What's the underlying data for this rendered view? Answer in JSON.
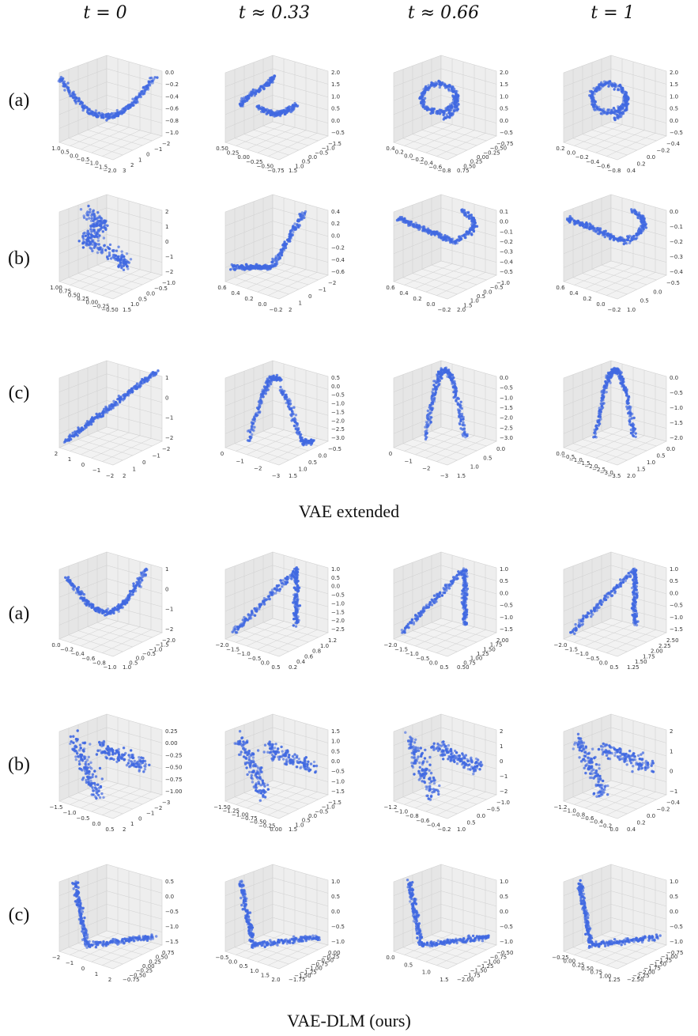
{
  "column_headers": [
    "t = 0",
    "t ≈ 0.33",
    "t ≈ 0.66",
    "t = 1"
  ],
  "row_labels": [
    "(a)",
    "(b)",
    "(c)"
  ],
  "sections": [
    {
      "title": "VAE extended"
    },
    {
      "title": "VAE-DLM (ours)"
    }
  ],
  "colors": {
    "point": "#4169e1",
    "pane_left": "#e6e6e6",
    "pane_right": "#eeeeee",
    "pane_floor": "#f2f2f2",
    "grid": "#d0d0d0"
  },
  "chart_data": [
    {
      "type": "scatter",
      "section": "VAE extended",
      "row": "(a)",
      "column": "t = 0",
      "shape": "parabola",
      "axes": {
        "x_ticks": [
          "1.0",
          "0.5",
          "0.0",
          "−0.5",
          "−1.0",
          "−1.5",
          "−2.0"
        ],
        "y_ticks": [
          "−2",
          "−1",
          "0",
          "1",
          "2",
          "3"
        ],
        "z_ticks": [
          "0.0",
          "−0.2",
          "−0.4",
          "−0.6",
          "−0.8",
          "−1.0"
        ]
      }
    },
    {
      "type": "scatter",
      "section": "VAE extended",
      "row": "(a)",
      "column": "t ≈ 0.33",
      "shape": "hook",
      "axes": {
        "x_ticks": [
          "0.50",
          "0.25",
          "0.00",
          "−0.25",
          "−0.50",
          "−0.75"
        ],
        "y_ticks": [
          "−1.5",
          "−1.0",
          "−0.5",
          "0.0",
          "0.5",
          "1.0",
          "1.5"
        ],
        "z_ticks": [
          "2.0",
          "1.5",
          "1.0",
          "0.5",
          "0.0",
          "−0.5"
        ]
      }
    },
    {
      "type": "scatter",
      "section": "VAE extended",
      "row": "(a)",
      "column": "t ≈ 0.66",
      "shape": "loop",
      "axes": {
        "x_ticks": [
          "0.4",
          "0.2",
          "0.0",
          "−0.2",
          "−0.4",
          "−0.6",
          "−0.8"
        ],
        "y_ticks": [
          "−0.75",
          "−0.50",
          "−0.25",
          "0.00",
          "0.25",
          "0.50",
          "0.75"
        ],
        "z_ticks": [
          "2.0",
          "1.5",
          "1.0",
          "0.5",
          "0.0",
          "−0.5"
        ]
      }
    },
    {
      "type": "scatter",
      "section": "VAE extended",
      "row": "(a)",
      "column": "t = 1",
      "shape": "loop",
      "axes": {
        "x_ticks": [
          "0.2",
          "0.0",
          "−0.2",
          "−0.4",
          "−0.6",
          "−0.8"
        ],
        "y_ticks": [
          "−0.4",
          "−0.2",
          "0.0",
          "0.2",
          "0.4"
        ],
        "z_ticks": [
          "2.0",
          "1.5",
          "1.0",
          "0.5",
          "0.0",
          "−0.5"
        ]
      }
    },
    {
      "type": "scatter",
      "section": "VAE extended",
      "row": "(b)",
      "column": "t = 0",
      "shape": "sheet",
      "axes": {
        "x_ticks": [
          "1.00",
          "0.75",
          "0.50",
          "0.25",
          "0.00",
          "−0.25",
          "−0.50"
        ],
        "y_ticks": [
          "−1.0",
          "−0.5",
          "0.0",
          "0.5",
          "1.0",
          "1.5"
        ],
        "z_ticks": [
          "2",
          "1",
          "0",
          "−1",
          "−2"
        ]
      }
    },
    {
      "type": "scatter",
      "section": "VAE extended",
      "row": "(b)",
      "column": "t ≈ 0.33",
      "shape": "j-curve",
      "axes": {
        "x_ticks": [
          "0.6",
          "0.4",
          "0.2",
          "0.0",
          "−0.2"
        ],
        "y_ticks": [
          "−2",
          "−1",
          "0",
          "1",
          "2"
        ],
        "z_ticks": [
          "0.4",
          "0.2",
          "0.0",
          "−0.2",
          "−0.4",
          "−0.6"
        ]
      }
    },
    {
      "type": "scatter",
      "section": "VAE extended",
      "row": "(b)",
      "column": "t ≈ 0.66",
      "shape": "line-hook",
      "axes": {
        "x_ticks": [
          "0.6",
          "0.4",
          "0.2",
          "0.0",
          "−0.2"
        ],
        "y_ticks": [
          "−1.0",
          "−0.5",
          "0.0",
          "0.5",
          "1.0",
          "1.5",
          "2.0"
        ],
        "z_ticks": [
          "0.1",
          "0.0",
          "−0.1",
          "−0.2",
          "−0.3",
          "−0.4",
          "−0.5"
        ]
      }
    },
    {
      "type": "scatter",
      "section": "VAE extended",
      "row": "(b)",
      "column": "t = 1",
      "shape": "line-hook",
      "axes": {
        "x_ticks": [
          "0.6",
          "0.4",
          "0.2",
          "0.0",
          "−0.2"
        ],
        "y_ticks": [
          "−0.5",
          "0.0",
          "0.5",
          "1.0"
        ],
        "z_ticks": [
          "0.0",
          "−0.1",
          "−0.2",
          "−0.3",
          "−0.4"
        ]
      }
    },
    {
      "type": "scatter",
      "section": "VAE extended",
      "row": "(c)",
      "column": "t = 0",
      "shape": "diagonal",
      "axes": {
        "x_ticks": [
          "2",
          "1",
          "0",
          "−1",
          "−2"
        ],
        "y_ticks": [
          "−2",
          "−1",
          "0",
          "1",
          "2"
        ],
        "z_ticks": [
          "1",
          "0",
          "−1",
          "−2"
        ]
      }
    },
    {
      "type": "scatter",
      "section": "VAE extended",
      "row": "(c)",
      "column": "t ≈ 0.33",
      "shape": "arch",
      "axes": {
        "x_ticks": [
          "0",
          "−1",
          "−2",
          "−3"
        ],
        "y_ticks": [
          "−0.5",
          "0.0",
          "0.5",
          "1.0",
          "1.5"
        ],
        "z_ticks": [
          "0.5",
          "0.0",
          "−0.5",
          "−1.0",
          "−1.5",
          "−2.0",
          "−2.5",
          "−3.0"
        ]
      }
    },
    {
      "type": "scatter",
      "section": "VAE extended",
      "row": "(c)",
      "column": "t ≈ 0.66",
      "shape": "inverted-u",
      "axes": {
        "x_ticks": [
          "0",
          "−1",
          "−2",
          "−3"
        ],
        "y_ticks": [
          "0.0",
          "0.5",
          "1.0",
          "1.5"
        ],
        "z_ticks": [
          "0.0",
          "−0.5",
          "−1.0",
          "−1.5",
          "−2.0",
          "−2.5",
          "−3.0"
        ]
      }
    },
    {
      "type": "scatter",
      "section": "VAE extended",
      "row": "(c)",
      "column": "t = 1",
      "shape": "inverted-u",
      "axes": {
        "x_ticks": [
          "0.0",
          "−0.5",
          "−1.0",
          "−1.5",
          "−2.0",
          "−2.5",
          "−3.0",
          "−3.5"
        ],
        "y_ticks": [
          "0.0",
          "0.5",
          "1.0",
          "1.5",
          "2.0"
        ],
        "z_ticks": [
          "0.0",
          "−0.5",
          "−1.0",
          "−1.5",
          "−2.0"
        ]
      }
    },
    {
      "type": "scatter",
      "section": "VAE-DLM (ours)",
      "row": "(a)",
      "column": "t = 0",
      "shape": "horseshoe",
      "axes": {
        "x_ticks": [
          "0.0",
          "−0.2",
          "−0.4",
          "−0.6",
          "−0.8",
          "−1.0"
        ],
        "y_ticks": [
          "−2.0",
          "−1.5",
          "−1.0",
          "−0.5",
          "0.0",
          "0.5",
          "1.0"
        ],
        "z_ticks": [
          "1",
          "0",
          "−1",
          "−2"
        ]
      }
    },
    {
      "type": "scatter",
      "section": "VAE-DLM (ours)",
      "row": "(a)",
      "column": "t ≈ 0.33",
      "shape": "chevron",
      "axes": {
        "x_ticks": [
          "−2.0",
          "−1.5",
          "−1.0",
          "−0.5",
          "0.0",
          "0.5"
        ],
        "y_ticks": [
          "1.2",
          "1.0",
          "0.8",
          "0.6",
          "0.4",
          "0.2"
        ],
        "z_ticks": [
          "1.0",
          "0.5",
          "0.0",
          "−0.5",
          "−1.0",
          "−1.5",
          "−2.0",
          "−2.5"
        ]
      }
    },
    {
      "type": "scatter",
      "section": "VAE-DLM (ours)",
      "row": "(a)",
      "column": "t ≈ 0.66",
      "shape": "chevron",
      "axes": {
        "x_ticks": [
          "−2.0",
          "−1.5",
          "−1.0",
          "−0.5",
          "0.0",
          "0.5"
        ],
        "y_ticks": [
          "2.00",
          "1.75",
          "1.50",
          "1.25",
          "1.00",
          "0.75",
          "0.50"
        ],
        "z_ticks": [
          "1.0",
          "0.5",
          "0.0",
          "−0.5",
          "−1.0",
          "−1.5"
        ]
      }
    },
    {
      "type": "scatter",
      "section": "VAE-DLM (ours)",
      "row": "(a)",
      "column": "t = 1",
      "shape": "chevron",
      "axes": {
        "x_ticks": [
          "−2.0",
          "−1.5",
          "−1.0",
          "−0.5",
          "0.0",
          "0.5"
        ],
        "y_ticks": [
          "2.50",
          "2.25",
          "2.00",
          "1.75",
          "1.50",
          "1.25"
        ],
        "z_ticks": [
          "1.0",
          "0.5",
          "0.0",
          "−0.5",
          "−1.0",
          "−1.5"
        ]
      }
    },
    {
      "type": "scatter",
      "section": "VAE-DLM (ours)",
      "row": "(b)",
      "column": "t = 0",
      "shape": "wing",
      "axes": {
        "x_ticks": [
          "−1.5",
          "−1.0",
          "−0.5",
          "0.0",
          "0.5"
        ],
        "y_ticks": [
          "−3",
          "−2",
          "−1",
          "0",
          "1",
          "2"
        ],
        "z_ticks": [
          "0.25",
          "0.00",
          "−0.25",
          "−0.50",
          "−0.75",
          "−1.00"
        ]
      }
    },
    {
      "type": "scatter",
      "section": "VAE-DLM (ours)",
      "row": "(b)",
      "column": "t ≈ 0.33",
      "shape": "wing",
      "axes": {
        "x_ticks": [
          "−1.50",
          "−1.25",
          "−1.00",
          "−0.75",
          "−0.50",
          "−0.25",
          "0.00"
        ],
        "y_ticks": [
          "−1.5",
          "−1.0",
          "−0.5",
          "0.0",
          "0.5",
          "1.0",
          "1.5"
        ],
        "z_ticks": [
          "1.5",
          "1.0",
          "0.5",
          "0.0",
          "−0.5",
          "−1.0",
          "−1.5"
        ]
      }
    },
    {
      "type": "scatter",
      "section": "VAE-DLM (ours)",
      "row": "(b)",
      "column": "t ≈ 0.66",
      "shape": "wing",
      "axes": {
        "x_ticks": [
          "−1.2",
          "−1.0",
          "−0.8",
          "−0.6",
          "−0.4",
          "−0.2"
        ],
        "y_ticks": [
          "−1.0",
          "−0.5",
          "0.0",
          "0.5",
          "1.0"
        ],
        "z_ticks": [
          "2",
          "1",
          "0",
          "−1",
          "−2"
        ]
      }
    },
    {
      "type": "scatter",
      "section": "VAE-DLM (ours)",
      "row": "(b)",
      "column": "t = 1",
      "shape": "wing",
      "axes": {
        "x_ticks": [
          "−1.2",
          "−1.0",
          "−0.8",
          "−0.6",
          "−0.4",
          "−0.2",
          "0.0"
        ],
        "y_ticks": [
          "−0.4",
          "−0.2",
          "0.0",
          "0.2",
          "0.4"
        ],
        "z_ticks": [
          "2",
          "1",
          "0",
          "−1"
        ]
      }
    },
    {
      "type": "scatter",
      "section": "VAE-DLM (ours)",
      "row": "(c)",
      "column": "t = 0",
      "shape": "l-curve",
      "axes": {
        "x_ticks": [
          "−2",
          "−1",
          "0",
          "1",
          "2"
        ],
        "y_ticks": [
          "0.75",
          "0.50",
          "0.25",
          "0.00",
          "−0.25",
          "−0.50",
          "−0.75"
        ],
        "z_ticks": [
          "0.5",
          "0.0",
          "−0.5",
          "−1.0",
          "−1.5"
        ]
      }
    },
    {
      "type": "scatter",
      "section": "VAE-DLM (ours)",
      "row": "(c)",
      "column": "t ≈ 0.33",
      "shape": "l-curve",
      "axes": {
        "x_ticks": [
          "−0.5",
          "0.0",
          "0.5",
          "1.0",
          "1.5",
          "2.0"
        ],
        "y_ticks": [
          "0.00",
          "−0.25",
          "−0.50",
          "−0.75",
          "−1.00",
          "−1.25",
          "−1.50",
          "−1.75"
        ],
        "z_ticks": [
          "1.0",
          "0.5",
          "0.0",
          "−0.5",
          "−1.0"
        ]
      }
    },
    {
      "type": "scatter",
      "section": "VAE-DLM (ours)",
      "row": "(c)",
      "column": "t ≈ 0.66",
      "shape": "l-curve",
      "axes": {
        "x_ticks": [
          "0.0",
          "0.5",
          "1.0",
          "1.5"
        ],
        "y_ticks": [
          "−0.50",
          "−0.75",
          "−1.00",
          "−1.25",
          "−1.50",
          "−1.75",
          "−2.00"
        ],
        "z_ticks": [
          "1.0",
          "0.5",
          "0.0",
          "−0.5",
          "−1.0"
        ]
      }
    },
    {
      "type": "scatter",
      "section": "VAE-DLM (ours)",
      "row": "(c)",
      "column": "t = 1",
      "shape": "l-curve",
      "axes": {
        "x_ticks": [
          "−0.25",
          "0.00",
          "0.25",
          "0.50",
          "0.75",
          "1.00",
          "1.25"
        ],
        "y_ticks": [
          "−0.75",
          "−1.00",
          "−1.25",
          "−1.50",
          "−1.75",
          "−2.00",
          "−2.25",
          "−2.50"
        ],
        "z_ticks": [
          "1.0",
          "0.5",
          "0.0",
          "−0.5",
          "−1.0"
        ]
      }
    }
  ]
}
